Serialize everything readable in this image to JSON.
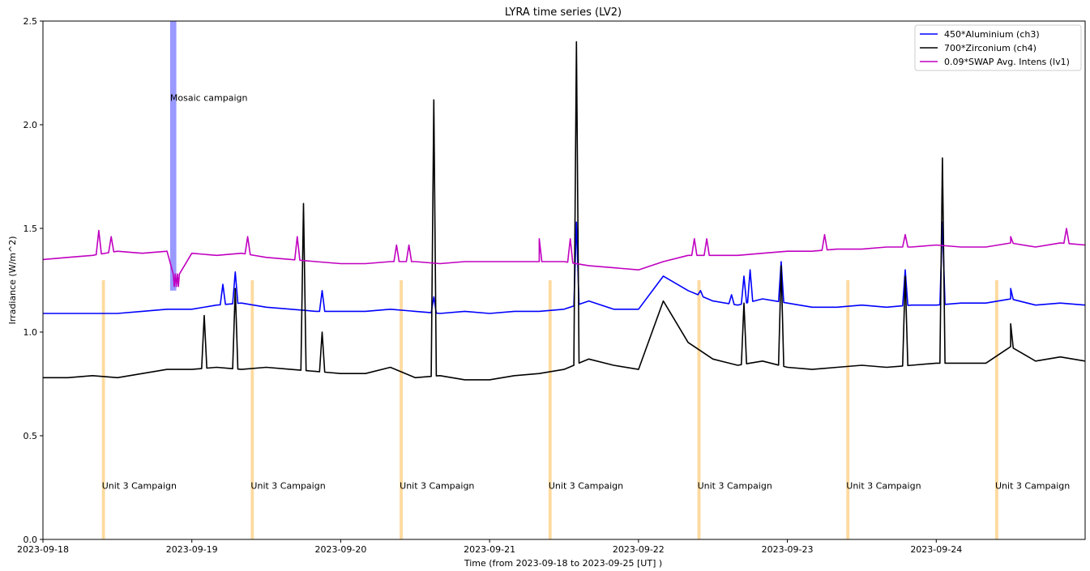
{
  "chart_data": {
    "type": "line",
    "title": "LYRA time series (LV2)",
    "xlabel": "Time (from 2023-09-18 to 2023-09-25 [UT] )",
    "ylabel": "Irradiance (W/m^2)",
    "xlim": [
      "2023-09-18",
      "2023-09-25"
    ],
    "ylim": [
      0.0,
      2.5
    ],
    "x_ticks": [
      "2023-09-18",
      "2023-09-19",
      "2023-09-20",
      "2023-09-21",
      "2023-09-22",
      "2023-09-23",
      "2023-09-24"
    ],
    "y_ticks": [
      "0.0",
      "0.5",
      "1.0",
      "1.5",
      "2.0",
      "2.5"
    ],
    "grid": false,
    "legend_position": "top-right",
    "series": [
      {
        "name": "450*Aluminium (ch3)",
        "color": "#0000ff",
        "points": [
          [
            "2023-09-18 00:00",
            1.09
          ],
          [
            "2023-09-18 04:00",
            1.09
          ],
          [
            "2023-09-18 08:00",
            1.09
          ],
          [
            "2023-09-18 12:00",
            1.09
          ],
          [
            "2023-09-18 16:00",
            1.1
          ],
          [
            "2023-09-18 20:00",
            1.11
          ],
          [
            "2023-09-19 00:00",
            1.11
          ],
          [
            "2023-09-19 04:00",
            1.13
          ],
          [
            "2023-09-19 08:00",
            1.14
          ],
          [
            "2023-09-19 12:00",
            1.12
          ],
          [
            "2023-09-19 16:00",
            1.11
          ],
          [
            "2023-09-19 20:00",
            1.1
          ],
          [
            "2023-09-20 00:00",
            1.1
          ],
          [
            "2023-09-20 04:00",
            1.1
          ],
          [
            "2023-09-20 08:00",
            1.11
          ],
          [
            "2023-09-20 12:00",
            1.1
          ],
          [
            "2023-09-20 16:00",
            1.09
          ],
          [
            "2023-09-20 20:00",
            1.1
          ],
          [
            "2023-09-21 00:00",
            1.09
          ],
          [
            "2023-09-21 04:00",
            1.1
          ],
          [
            "2023-09-21 08:00",
            1.1
          ],
          [
            "2023-09-21 12:00",
            1.11
          ],
          [
            "2023-09-21 16:00",
            1.15
          ],
          [
            "2023-09-21 20:00",
            1.11
          ],
          [
            "2023-09-22 00:00",
            1.11
          ],
          [
            "2023-09-22 04:00",
            1.27
          ],
          [
            "2023-09-22 08:00",
            1.2
          ],
          [
            "2023-09-22 12:00",
            1.15
          ],
          [
            "2023-09-22 16:00",
            1.13
          ],
          [
            "2023-09-22 20:00",
            1.16
          ],
          [
            "2023-09-23 00:00",
            1.14
          ],
          [
            "2023-09-23 04:00",
            1.12
          ],
          [
            "2023-09-23 08:00",
            1.12
          ],
          [
            "2023-09-23 12:00",
            1.13
          ],
          [
            "2023-09-23 16:00",
            1.12
          ],
          [
            "2023-09-23 20:00",
            1.13
          ],
          [
            "2023-09-24 00:00",
            1.13
          ],
          [
            "2023-09-24 04:00",
            1.14
          ],
          [
            "2023-09-24 08:00",
            1.14
          ],
          [
            "2023-09-24 12:00",
            1.16
          ],
          [
            "2023-09-24 16:00",
            1.13
          ],
          [
            "2023-09-24 20:00",
            1.14
          ],
          [
            "2023-09-25 00:00",
            1.13
          ]
        ],
        "peaks": [
          [
            "2023-09-19 05:00",
            1.23
          ],
          [
            "2023-09-19 07:00",
            1.29
          ],
          [
            "2023-09-19 21:00",
            1.2
          ],
          [
            "2023-09-20 15:00",
            1.17
          ],
          [
            "2023-09-21 14:00",
            1.53
          ],
          [
            "2023-09-22 10:00",
            1.2
          ],
          [
            "2023-09-22 15:00",
            1.18
          ],
          [
            "2023-09-22 17:00",
            1.27
          ],
          [
            "2023-09-22 18:00",
            1.3
          ],
          [
            "2023-09-22 23:00",
            1.34
          ],
          [
            "2023-09-23 19:00",
            1.3
          ],
          [
            "2023-09-24 01:00",
            1.53
          ],
          [
            "2023-09-24 12:00",
            1.21
          ]
        ]
      },
      {
        "name": "700*Zirconium (ch4)",
        "color": "#000000",
        "points": [
          [
            "2023-09-18 00:00",
            0.78
          ],
          [
            "2023-09-18 04:00",
            0.78
          ],
          [
            "2023-09-18 08:00",
            0.79
          ],
          [
            "2023-09-18 12:00",
            0.78
          ],
          [
            "2023-09-18 16:00",
            0.8
          ],
          [
            "2023-09-18 20:00",
            0.82
          ],
          [
            "2023-09-19 00:00",
            0.82
          ],
          [
            "2023-09-19 04:00",
            0.83
          ],
          [
            "2023-09-19 08:00",
            0.82
          ],
          [
            "2023-09-19 12:00",
            0.83
          ],
          [
            "2023-09-19 16:00",
            0.82
          ],
          [
            "2023-09-19 20:00",
            0.81
          ],
          [
            "2023-09-20 00:00",
            0.8
          ],
          [
            "2023-09-20 04:00",
            0.8
          ],
          [
            "2023-09-20 08:00",
            0.83
          ],
          [
            "2023-09-20 12:00",
            0.78
          ],
          [
            "2023-09-20 16:00",
            0.79
          ],
          [
            "2023-09-20 20:00",
            0.77
          ],
          [
            "2023-09-21 00:00",
            0.77
          ],
          [
            "2023-09-21 04:00",
            0.79
          ],
          [
            "2023-09-21 08:00",
            0.8
          ],
          [
            "2023-09-21 12:00",
            0.82
          ],
          [
            "2023-09-21 16:00",
            0.87
          ],
          [
            "2023-09-21 20:00",
            0.84
          ],
          [
            "2023-09-22 00:00",
            0.82
          ],
          [
            "2023-09-22 04:00",
            1.15
          ],
          [
            "2023-09-22 08:00",
            0.95
          ],
          [
            "2023-09-22 12:00",
            0.87
          ],
          [
            "2023-09-22 16:00",
            0.84
          ],
          [
            "2023-09-22 20:00",
            0.86
          ],
          [
            "2023-09-23 00:00",
            0.83
          ],
          [
            "2023-09-23 04:00",
            0.82
          ],
          [
            "2023-09-23 08:00",
            0.83
          ],
          [
            "2023-09-23 12:00",
            0.84
          ],
          [
            "2023-09-23 16:00",
            0.83
          ],
          [
            "2023-09-23 20:00",
            0.84
          ],
          [
            "2023-09-24 00:00",
            0.85
          ],
          [
            "2023-09-24 04:00",
            0.85
          ],
          [
            "2023-09-24 08:00",
            0.85
          ],
          [
            "2023-09-24 12:00",
            0.93
          ],
          [
            "2023-09-24 16:00",
            0.86
          ],
          [
            "2023-09-24 20:00",
            0.88
          ],
          [
            "2023-09-25 00:00",
            0.86
          ]
        ],
        "peaks": [
          [
            "2023-09-19 02:00",
            1.08
          ],
          [
            "2023-09-19 07:00",
            1.21
          ],
          [
            "2023-09-19 18:00",
            1.62
          ],
          [
            "2023-09-19 21:00",
            1.0
          ],
          [
            "2023-09-20 15:00",
            2.12
          ],
          [
            "2023-09-21 14:00",
            2.4
          ],
          [
            "2023-09-22 17:00",
            1.14
          ],
          [
            "2023-09-22 23:00",
            1.32
          ],
          [
            "2023-09-23 19:00",
            1.27
          ],
          [
            "2023-09-24 01:00",
            1.84
          ],
          [
            "2023-09-24 12:00",
            1.04
          ]
        ]
      },
      {
        "name": "0.09*SWAP Avg. Intens (lv1)",
        "color": "#c000c0",
        "points": [
          [
            "2023-09-18 00:00",
            1.35
          ],
          [
            "2023-09-18 04:00",
            1.36
          ],
          [
            "2023-09-18 08:00",
            1.37
          ],
          [
            "2023-09-18 12:00",
            1.39
          ],
          [
            "2023-09-18 16:00",
            1.38
          ],
          [
            "2023-09-18 20:00",
            1.39
          ],
          [
            "2023-09-19 00:00",
            1.38
          ],
          [
            "2023-09-19 04:00",
            1.37
          ],
          [
            "2023-09-19 08:00",
            1.38
          ],
          [
            "2023-09-19 12:00",
            1.36
          ],
          [
            "2023-09-19 16:00",
            1.35
          ],
          [
            "2023-09-19 20:00",
            1.34
          ],
          [
            "2023-09-20 00:00",
            1.33
          ],
          [
            "2023-09-20 04:00",
            1.33
          ],
          [
            "2023-09-20 08:00",
            1.34
          ],
          [
            "2023-09-20 12:00",
            1.34
          ],
          [
            "2023-09-20 16:00",
            1.33
          ],
          [
            "2023-09-20 20:00",
            1.34
          ],
          [
            "2023-09-21 00:00",
            1.34
          ],
          [
            "2023-09-21 04:00",
            1.34
          ],
          [
            "2023-09-21 08:00",
            1.34
          ],
          [
            "2023-09-21 12:00",
            1.34
          ],
          [
            "2023-09-21 16:00",
            1.32
          ],
          [
            "2023-09-21 20:00",
            1.31
          ],
          [
            "2023-09-22 00:00",
            1.3
          ],
          [
            "2023-09-22 04:00",
            1.34
          ],
          [
            "2023-09-22 08:00",
            1.37
          ],
          [
            "2023-09-22 12:00",
            1.37
          ],
          [
            "2023-09-22 16:00",
            1.37
          ],
          [
            "2023-09-22 20:00",
            1.38
          ],
          [
            "2023-09-23 00:00",
            1.39
          ],
          [
            "2023-09-23 04:00",
            1.39
          ],
          [
            "2023-09-23 08:00",
            1.4
          ],
          [
            "2023-09-23 12:00",
            1.4
          ],
          [
            "2023-09-23 16:00",
            1.41
          ],
          [
            "2023-09-23 20:00",
            1.41
          ],
          [
            "2023-09-24 00:00",
            1.42
          ],
          [
            "2023-09-24 04:00",
            1.41
          ],
          [
            "2023-09-24 08:00",
            1.41
          ],
          [
            "2023-09-24 12:00",
            1.43
          ],
          [
            "2023-09-24 16:00",
            1.41
          ],
          [
            "2023-09-24 20:00",
            1.43
          ],
          [
            "2023-09-25 00:00",
            1.42
          ]
        ],
        "peaks": [
          [
            "2023-09-18 09:00",
            1.49
          ],
          [
            "2023-09-18 11:00",
            1.46
          ],
          [
            "2023-09-19 09:00",
            1.46
          ],
          [
            "2023-09-19 17:00",
            1.46
          ],
          [
            "2023-09-20 09:00",
            1.42
          ],
          [
            "2023-09-20 11:00",
            1.42
          ],
          [
            "2023-09-21 08:00",
            1.45
          ],
          [
            "2023-09-21 13:00",
            1.45
          ],
          [
            "2023-09-22 09:00",
            1.45
          ],
          [
            "2023-09-22 11:00",
            1.45
          ],
          [
            "2023-09-23 06:00",
            1.47
          ],
          [
            "2023-09-23 19:00",
            1.47
          ],
          [
            "2023-09-24 12:00",
            1.46
          ],
          [
            "2023-09-24 21:00",
            1.5
          ]
        ],
        "dip": {
          "start": "2023-09-18 21:00",
          "end": "2023-09-18 22:00",
          "low": 1.2
        }
      }
    ],
    "campaigns": [
      {
        "label": "Mosaic campaign",
        "start": "2023-09-18 20:30",
        "end": "2023-09-18 21:30",
        "ymin": 1.2,
        "ymax": 2.5,
        "color": "#9999ff"
      },
      {
        "label": "Unit 3 Campaign",
        "start": "2023-09-18 09:30",
        "end": "2023-09-18 10:00",
        "ymin": 0.0,
        "ymax": 1.25,
        "color": "#fdd89a"
      },
      {
        "label": "Unit 3 Campaign",
        "start": "2023-09-19 09:30",
        "end": "2023-09-19 10:00",
        "ymin": 0.0,
        "ymax": 1.25,
        "color": "#fdd89a"
      },
      {
        "label": "Unit 3 Campaign",
        "start": "2023-09-20 09:30",
        "end": "2023-09-20 10:00",
        "ymin": 0.0,
        "ymax": 1.25,
        "color": "#fdd89a"
      },
      {
        "label": "Unit 3 Campaign",
        "start": "2023-09-21 09:30",
        "end": "2023-09-21 10:00",
        "ymin": 0.0,
        "ymax": 1.25,
        "color": "#fdd89a"
      },
      {
        "label": "Unit 3 Campaign",
        "start": "2023-09-22 09:30",
        "end": "2023-09-22 10:00",
        "ymin": 0.0,
        "ymax": 1.25,
        "color": "#fdd89a"
      },
      {
        "label": "Unit 3 Campaign",
        "start": "2023-09-23 09:30",
        "end": "2023-09-23 10:00",
        "ymin": 0.0,
        "ymax": 1.25,
        "color": "#fdd89a"
      },
      {
        "label": "Unit 3 Campaign",
        "start": "2023-09-24 09:30",
        "end": "2023-09-24 10:00",
        "ymin": 0.0,
        "ymax": 1.25,
        "color": "#fdd89a"
      }
    ]
  }
}
